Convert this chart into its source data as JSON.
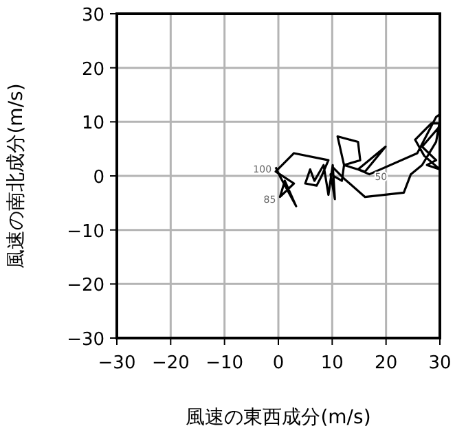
{
  "chart_data": {
    "type": "line",
    "xlabel": "風速の東西成分(m/s)",
    "ylabel": "風速の南北成分(m/s)",
    "xlim": [
      -30,
      30
    ],
    "ylim": [
      -30,
      30
    ],
    "xticks": [
      -30,
      -20,
      -10,
      0,
      10,
      20,
      30
    ],
    "yticks": [
      -30,
      -20,
      -10,
      0,
      10,
      20,
      30
    ],
    "grid": true,
    "series": [
      {
        "color": "#000000",
        "x": [
          -0.5,
          0.3,
          3.3,
          1.2,
          0.3,
          2.9,
          -0.5,
          2.9,
          9.3,
          8.0,
          7.1,
          5.0,
          5.9,
          6.7,
          8.4,
          9.3,
          10.1,
          10.5,
          9.7,
          11.8,
          12.2,
          11.0,
          14.8,
          15.2,
          12.2,
          16.1,
          19.9,
          14.8,
          16.9,
          25.8,
          29.3,
          30.0,
          30.0,
          26.7,
          29.3,
          27.6,
          30.0,
          27.1,
          25.4,
          28.4,
          29.9,
          29.3,
          26.7,
          24.6,
          23.3,
          16.1,
          12.2,
          10.1
        ],
        "values": [
          1.6,
          -0.1,
          -5.6,
          -0.9,
          -3.9,
          -1.4,
          0.8,
          4.2,
          2.9,
          -0.1,
          -1.8,
          -1.4,
          1.2,
          -0.9,
          2.0,
          -3.5,
          2.0,
          -4.3,
          0.3,
          -0.9,
          2.0,
          7.3,
          6.3,
          2.9,
          2.0,
          0.8,
          5.4,
          1.2,
          0.3,
          4.2,
          10.9,
          11.4,
          9.2,
          5.4,
          2.9,
          2.0,
          1.2,
          3.7,
          6.7,
          9.7,
          9.7,
          6.3,
          2.0,
          0.3,
          -3.1,
          -3.9,
          -0.5,
          1.6
        ]
      }
    ],
    "annotations": [
      {
        "text": "100",
        "x": -0.5,
        "y": 1.6
      },
      {
        "text": "85",
        "x": 0.3,
        "y": -3.9
      },
      {
        "text": "50",
        "x": 16.9,
        "y": 0.3
      }
    ]
  }
}
